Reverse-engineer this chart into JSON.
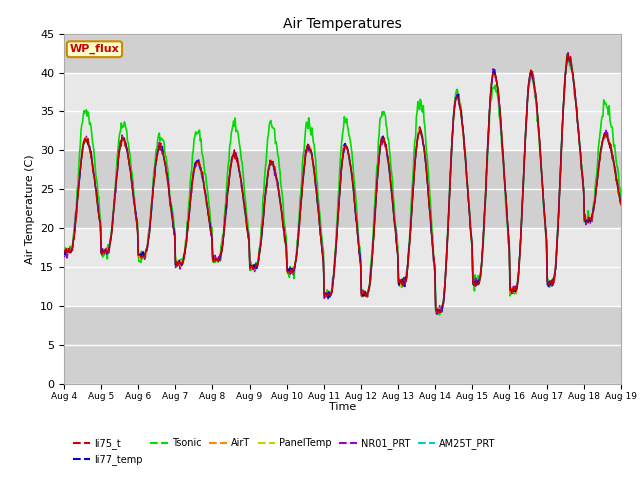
{
  "title": "Air Temperatures",
  "xlabel": "Time",
  "ylabel": "Air Temperature (C)",
  "ylim": [
    0,
    45
  ],
  "yticks": [
    0,
    5,
    10,
    15,
    20,
    25,
    30,
    35,
    40,
    45
  ],
  "series": {
    "li75_t": {
      "color": "#cc0000",
      "lw": 1.0,
      "zorder": 6
    },
    "li77_temp": {
      "color": "#0000cc",
      "lw": 1.0,
      "zorder": 6
    },
    "Tsonic": {
      "color": "#00dd00",
      "lw": 1.2,
      "zorder": 4
    },
    "AirT": {
      "color": "#ff8800",
      "lw": 1.0,
      "zorder": 6
    },
    "PanelTemp": {
      "color": "#cccc00",
      "lw": 1.0,
      "zorder": 6
    },
    "NR01_PRT": {
      "color": "#9900cc",
      "lw": 1.0,
      "zorder": 6
    },
    "AM25T_PRT": {
      "color": "#00cccc",
      "lw": 1.2,
      "zorder": 5
    }
  },
  "legend_box": {
    "text": "WP_flux",
    "facecolor": "#ffffcc",
    "edgecolor": "#cc8800",
    "textcolor": "#cc0000",
    "fontsize": 8
  },
  "background_color": "#ffffff",
  "plot_bg_bands": [
    [
      0,
      10,
      "#d0d0d0"
    ],
    [
      10,
      20,
      "#e8e8e8"
    ],
    [
      20,
      30,
      "#d0d0d0"
    ],
    [
      30,
      40,
      "#e8e8e8"
    ],
    [
      40,
      45,
      "#d0d0d0"
    ]
  ],
  "grid_color": "#ffffff",
  "grid_lw": 1.0,
  "xtick_labels": [
    "Aug 4",
    "Aug 5",
    "Aug 6",
    "Aug 7",
    "Aug 8",
    "Aug 9",
    "Aug 10",
    "Aug 11",
    "Aug 12",
    "Aug 13",
    "Aug 14",
    "Aug 15",
    "Aug 16",
    "Aug 17",
    "Aug 18",
    "Aug 19"
  ],
  "n_days": 15
}
